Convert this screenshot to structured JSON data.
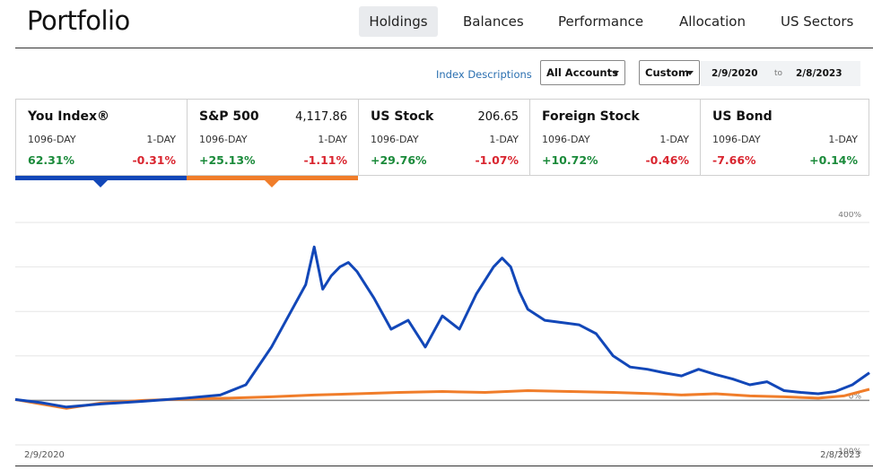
{
  "page_title": "Portfolio",
  "nav": {
    "tabs": [
      "Holdings",
      "Balances",
      "Performance",
      "Allocation",
      "US Sectors"
    ],
    "active": "Holdings"
  },
  "toolbar": {
    "index_descriptions": "Index Descriptions",
    "accounts_select": "All Accounts",
    "range_select": "Custom",
    "start_date": "2/9/2020",
    "to_label": "to",
    "end_date": "2/8/2023"
  },
  "cards": [
    {
      "name": "You Index®",
      "value": "",
      "period": "1096-DAY",
      "period_change": "62.31%",
      "day_label": "1-DAY",
      "day_change": "-0.31%"
    },
    {
      "name": "S&P 500",
      "value": "4,117.86",
      "period": "1096-DAY",
      "period_change": "+25.13%",
      "day_label": "1-DAY",
      "day_change": "-1.11%"
    },
    {
      "name": "US Stock",
      "value": "206.65",
      "period": "1096-DAY",
      "period_change": "+29.76%",
      "day_label": "1-DAY",
      "day_change": "-1.07%"
    },
    {
      "name": "Foreign Stock",
      "value": "",
      "period": "1096-DAY",
      "period_change": "+10.72%",
      "day_label": "1-DAY",
      "day_change": "-0.46%"
    },
    {
      "name": "US Bond",
      "value": "",
      "period": "1096-DAY",
      "period_change": "-7.66%",
      "day_label": "1-DAY",
      "day_change": "+0.14%"
    }
  ],
  "colors": {
    "you_index": "#1247b8",
    "sp500": "#f07d2a",
    "positive": "#1a8a3a",
    "negative": "#d9252f"
  },
  "chart_data": {
    "type": "line",
    "ylim": [
      -100,
      400
    ],
    "y_tick_labels": [
      "400%",
      "0%",
      "-100%"
    ],
    "x_tick_labels": [
      "2/9/2020",
      "2/8/2023"
    ],
    "grid": true,
    "series": [
      {
        "name": "You Index®",
        "color": "#1247b8",
        "x": [
          0,
          0.03,
          0.06,
          0.1,
          0.15,
          0.2,
          0.24,
          0.27,
          0.3,
          0.32,
          0.34,
          0.35,
          0.36,
          0.37,
          0.38,
          0.39,
          0.4,
          0.42,
          0.44,
          0.46,
          0.48,
          0.5,
          0.52,
          0.54,
          0.56,
          0.57,
          0.58,
          0.59,
          0.6,
          0.62,
          0.64,
          0.66,
          0.68,
          0.7,
          0.72,
          0.74,
          0.76,
          0.78,
          0.8,
          0.82,
          0.84,
          0.86,
          0.88,
          0.9,
          0.92,
          0.94,
          0.96,
          0.98,
          1.0
        ],
        "y": [
          2,
          -5,
          -15,
          -8,
          -2,
          5,
          12,
          35,
          120,
          190,
          260,
          345,
          250,
          280,
          300,
          310,
          290,
          230,
          160,
          180,
          120,
          190,
          160,
          240,
          300,
          320,
          300,
          245,
          205,
          180,
          175,
          170,
          150,
          100,
          75,
          70,
          62,
          55,
          70,
          58,
          48,
          35,
          42,
          22,
          18,
          15,
          20,
          35,
          62
        ]
      },
      {
        "name": "S&P 500",
        "color": "#f07d2a",
        "x": [
          0,
          0.03,
          0.06,
          0.1,
          0.15,
          0.2,
          0.25,
          0.3,
          0.35,
          0.4,
          0.45,
          0.5,
          0.55,
          0.6,
          0.65,
          0.7,
          0.75,
          0.78,
          0.82,
          0.86,
          0.9,
          0.94,
          0.97,
          1.0
        ],
        "y": [
          2,
          -8,
          -18,
          -6,
          0,
          3,
          5,
          8,
          12,
          15,
          18,
          20,
          18,
          22,
          20,
          18,
          15,
          12,
          15,
          10,
          8,
          5,
          10,
          25
        ]
      }
    ]
  }
}
